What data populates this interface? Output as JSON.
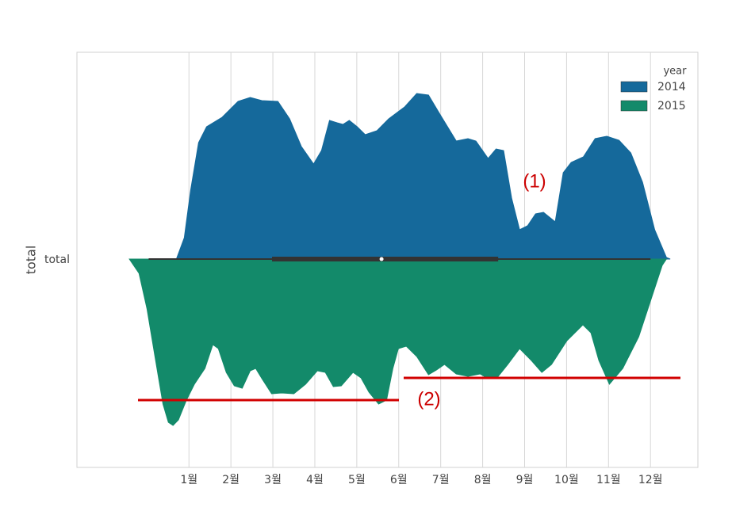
{
  "chart_data": {
    "type": "violin",
    "y_label": "total",
    "y_category": "total",
    "xlim": [
      -1.67,
      13.13
    ],
    "xticks": [
      {
        "value": 1,
        "label": "1월"
      },
      {
        "value": 2,
        "label": "2월"
      },
      {
        "value": 3,
        "label": "3월"
      },
      {
        "value": 4,
        "label": "4월"
      },
      {
        "value": 5,
        "label": "5월"
      },
      {
        "value": 6,
        "label": "6월"
      },
      {
        "value": 7,
        "label": "7월"
      },
      {
        "value": 8,
        "label": "8월"
      },
      {
        "value": 9,
        "label": "9월"
      },
      {
        "value": 10,
        "label": "10월"
      },
      {
        "value": 11,
        "label": "11월"
      },
      {
        "value": 12,
        "label": "12월"
      }
    ],
    "grid": true,
    "legend_title": "year",
    "legend_position": "upper right",
    "series": [
      {
        "name": "2014",
        "color": "#15699b",
        "side": "top",
        "x": [
          0.7,
          0.89,
          1.04,
          1.23,
          1.42,
          1.79,
          2.17,
          2.46,
          2.74,
          3.12,
          3.4,
          3.68,
          3.97,
          4.16,
          4.35,
          4.53,
          4.67,
          4.82,
          5.01,
          5.2,
          5.48,
          5.76,
          6.14,
          6.43,
          6.71,
          6.99,
          7.37,
          7.65,
          7.84,
          8.13,
          8.32,
          8.5,
          8.69,
          8.88,
          9.07,
          9.26,
          9.45,
          9.73,
          9.92,
          10.11,
          10.4,
          10.68,
          10.96,
          11.25,
          11.53,
          11.81,
          12.1,
          12.38,
          12.47
        ],
        "values": [
          0,
          0.135,
          0.435,
          0.735,
          0.835,
          0.895,
          0.995,
          1.02,
          1.0,
          0.995,
          0.885,
          0.71,
          0.6,
          0.685,
          0.875,
          0.86,
          0.85,
          0.875,
          0.835,
          0.785,
          0.81,
          0.885,
          0.96,
          1.045,
          1.035,
          0.91,
          0.745,
          0.76,
          0.745,
          0.635,
          0.695,
          0.685,
          0.385,
          0.185,
          0.21,
          0.285,
          0.295,
          0.235,
          0.545,
          0.61,
          0.645,
          0.76,
          0.775,
          0.75,
          0.67,
          0.485,
          0.185,
          0.01,
          0
        ]
      },
      {
        "name": "2015",
        "color": "#138a6a",
        "side": "bottom",
        "x": [
          -0.42,
          -0.19,
          0,
          0.19,
          0.38,
          0.51,
          0.62,
          0.75,
          0.94,
          1.13,
          1.38,
          1.57,
          1.7,
          1.89,
          2.08,
          2.27,
          2.46,
          2.59,
          2.74,
          2.97,
          3.21,
          3.5,
          3.78,
          4.06,
          4.25,
          4.44,
          4.63,
          4.91,
          5.1,
          5.29,
          5.52,
          5.71,
          5.86,
          5.99,
          6.18,
          6.43,
          6.71,
          6.9,
          7.09,
          7.37,
          7.65,
          7.94,
          8.13,
          8.37,
          8.6,
          8.88,
          9.16,
          9.41,
          9.64,
          10.01,
          10.39,
          10.58,
          10.77,
          11.02,
          11.34,
          11.72,
          12.0,
          12.28,
          12.38
        ],
        "values": [
          0,
          0.09,
          0.315,
          0.615,
          0.915,
          1.03,
          1.05,
          1.015,
          0.89,
          0.79,
          0.69,
          0.54,
          0.565,
          0.715,
          0.8,
          0.815,
          0.705,
          0.69,
          0.755,
          0.85,
          0.845,
          0.85,
          0.79,
          0.705,
          0.715,
          0.805,
          0.8,
          0.715,
          0.75,
          0.84,
          0.915,
          0.89,
          0.69,
          0.565,
          0.55,
          0.615,
          0.73,
          0.7,
          0.665,
          0.725,
          0.74,
          0.725,
          0.755,
          0.74,
          0.665,
          0.565,
          0.64,
          0.715,
          0.665,
          0.515,
          0.415,
          0.465,
          0.64,
          0.79,
          0.69,
          0.49,
          0.265,
          0.04,
          0
        ]
      }
    ],
    "box": {
      "whisker_low": 0.04,
      "q1": 2.98,
      "median": 5.59,
      "q3": 8.37,
      "whisker_high": 12.0
    },
    "annotations": [
      "(1)",
      "(2)"
    ]
  }
}
